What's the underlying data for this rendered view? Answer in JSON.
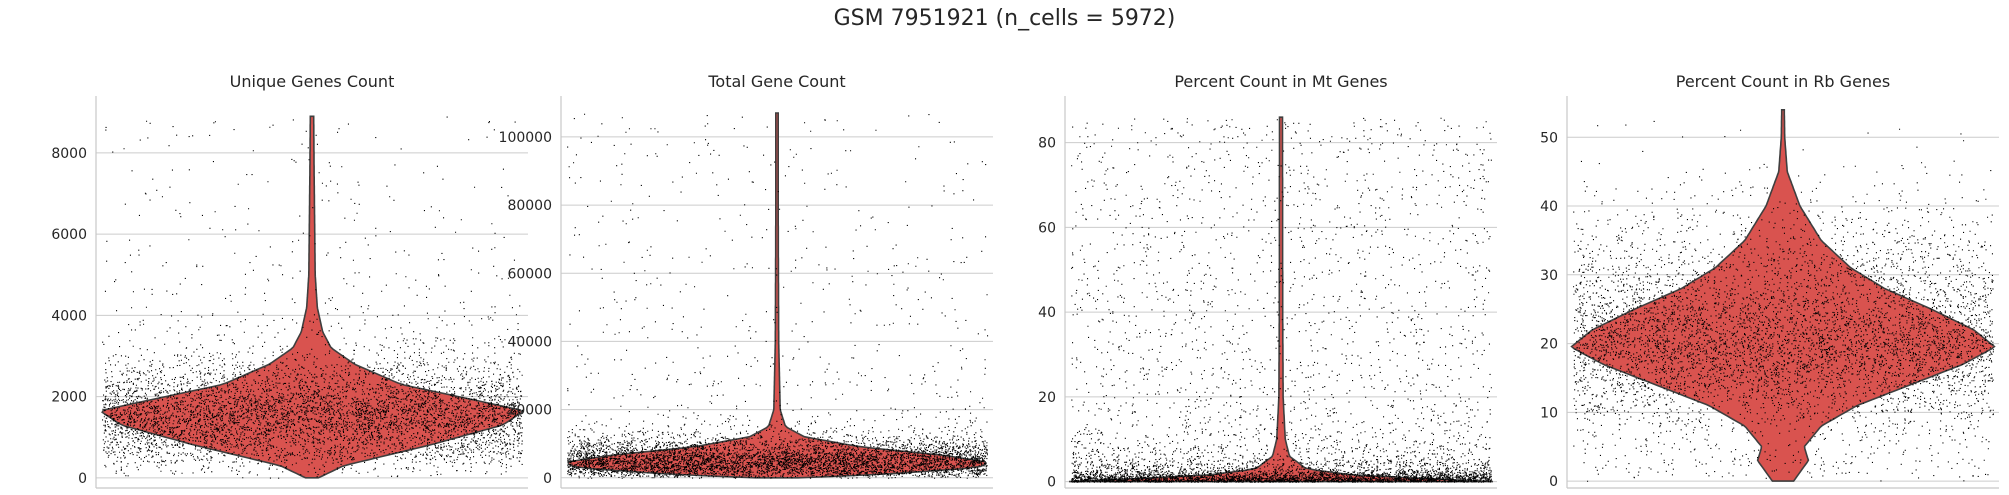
{
  "figure_title": "GSM 7951921 (n_cells = 5972)",
  "violin_color": "#d9534f",
  "chart_data": [
    {
      "type": "violin",
      "title": "Unique Genes Count",
      "xlabel": "",
      "ylabel": "",
      "ylim": [
        -250,
        9400
      ],
      "yticks": [
        0,
        2000,
        4000,
        6000,
        8000
      ],
      "grid": "horizontal",
      "n_points": 5972,
      "max": 8900,
      "density_profile": [
        [
          0,
          0.03
        ],
        [
          300,
          0.15
        ],
        [
          800,
          0.55
        ],
        [
          1300,
          0.9
        ],
        [
          1650,
          1.0
        ],
        [
          1900,
          0.78
        ],
        [
          2300,
          0.42
        ],
        [
          2800,
          0.2
        ],
        [
          3200,
          0.09
        ],
        [
          3600,
          0.05
        ],
        [
          4200,
          0.025
        ],
        [
          5000,
          0.015
        ],
        [
          6500,
          0.012
        ],
        [
          7500,
          0.01
        ],
        [
          8900,
          0.008
        ]
      ]
    },
    {
      "type": "violin",
      "title": "Total Gene Count",
      "xlabel": "",
      "ylabel": "",
      "ylim": [
        -3000,
        112000
      ],
      "yticks": [
        0,
        20000,
        40000,
        60000,
        80000,
        100000
      ],
      "grid": "horizontal",
      "n_points": 5972,
      "max": 107000,
      "density_profile": [
        [
          0,
          0.1
        ],
        [
          1000,
          0.5
        ],
        [
          3000,
          0.95
        ],
        [
          4500,
          1.0
        ],
        [
          6500,
          0.8
        ],
        [
          9000,
          0.4
        ],
        [
          12000,
          0.13
        ],
        [
          15000,
          0.04
        ],
        [
          20000,
          0.015
        ],
        [
          40000,
          0.008
        ],
        [
          70000,
          0.006
        ],
        [
          107000,
          0.005
        ]
      ]
    },
    {
      "type": "violin",
      "title": "Percent Count in Mt Genes",
      "xlabel": "",
      "ylabel": "",
      "ylim": [
        -1.5,
        91
      ],
      "yticks": [
        0,
        20,
        40,
        60,
        80
      ],
      "grid": "horizontal",
      "n_points": 5972,
      "max": 86,
      "density_profile": [
        [
          0,
          1.0
        ],
        [
          0.6,
          0.75
        ],
        [
          1.5,
          0.35
        ],
        [
          3,
          0.12
        ],
        [
          6,
          0.04
        ],
        [
          10,
          0.02
        ],
        [
          20,
          0.01
        ],
        [
          40,
          0.008
        ],
        [
          86,
          0.007
        ]
      ]
    },
    {
      "type": "violin",
      "title": "Percent Count in Rb Genes",
      "xlabel": "",
      "ylabel": "",
      "ylim": [
        -1,
        56
      ],
      "yticks": [
        0,
        10,
        20,
        30,
        40,
        50
      ],
      "grid": "horizontal",
      "n_points": 5972,
      "max": 54,
      "density_profile": [
        [
          0,
          0.05
        ],
        [
          3,
          0.12
        ],
        [
          5,
          0.1
        ],
        [
          8,
          0.18
        ],
        [
          11,
          0.35
        ],
        [
          14,
          0.6
        ],
        [
          17,
          0.85
        ],
        [
          19.5,
          1.0
        ],
        [
          22,
          0.9
        ],
        [
          25,
          0.7
        ],
        [
          28,
          0.48
        ],
        [
          31,
          0.32
        ],
        [
          35,
          0.18
        ],
        [
          40,
          0.08
        ],
        [
          45,
          0.02
        ],
        [
          50,
          0.008
        ],
        [
          54,
          0.006
        ]
      ]
    }
  ]
}
